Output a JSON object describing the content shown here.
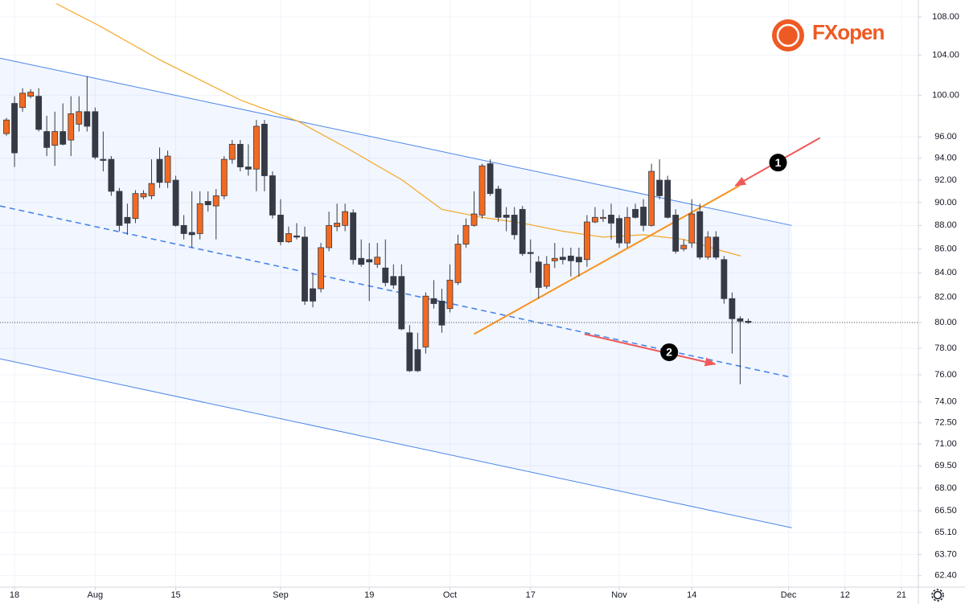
{
  "chart_data": {
    "type": "candlestick",
    "logo": "FXopen",
    "log_scale": true,
    "grid": true,
    "up_color": "#f26a21",
    "down_color": "#363a45",
    "xlim": [
      -1.8,
      112.1
    ],
    "xticks": [
      {
        "value": 0,
        "label": "18"
      },
      {
        "value": 10,
        "label": "Aug"
      },
      {
        "value": 20,
        "label": "15"
      },
      {
        "value": 33,
        "label": "Sep"
      },
      {
        "value": 44,
        "label": "19"
      },
      {
        "value": 54,
        "label": "Oct"
      },
      {
        "value": 64,
        "label": "17"
      },
      {
        "value": 75,
        "label": "Nov"
      },
      {
        "value": 84,
        "label": "14"
      },
      {
        "value": 96,
        "label": "Dec"
      },
      {
        "value": 103,
        "label": "12"
      },
      {
        "value": 110,
        "label": "21"
      }
    ],
    "ylim": [
      61.7,
      109.8
    ],
    "yticks": [
      {
        "value": 108,
        "label": "108.00"
      },
      {
        "value": 104,
        "label": "104.00"
      },
      {
        "value": 100,
        "label": "100.00"
      },
      {
        "value": 96,
        "label": "96.00"
      },
      {
        "value": 94,
        "label": "94.00"
      },
      {
        "value": 92,
        "label": "92.00"
      },
      {
        "value": 90,
        "label": "90.00"
      },
      {
        "value": 88,
        "label": "88.00"
      },
      {
        "value": 86,
        "label": "86.00"
      },
      {
        "value": 84,
        "label": "84.00"
      },
      {
        "value": 82,
        "label": "82.00"
      },
      {
        "value": 80,
        "label": "80.00"
      },
      {
        "value": 78,
        "label": "78.00"
      },
      {
        "value": 76,
        "label": "76.00"
      },
      {
        "value": 74,
        "label": "74.00"
      },
      {
        "value": 72.5,
        "label": "72.50"
      },
      {
        "value": 71,
        "label": "71.00"
      },
      {
        "value": 69.5,
        "label": "69.50"
      },
      {
        "value": 68,
        "label": "68.00"
      },
      {
        "value": 66.5,
        "label": "66.50"
      },
      {
        "value": 65.1,
        "label": "65.10"
      },
      {
        "value": 63.7,
        "label": "63.70"
      },
      {
        "value": 62.4,
        "label": "62.40"
      }
    ],
    "candles": {
      "x": [
        -1,
        0,
        1,
        2,
        3,
        4,
        5,
        6,
        7,
        8,
        9,
        10,
        11,
        12,
        13,
        14,
        15,
        16,
        17,
        18,
        19,
        20,
        21,
        22,
        23,
        24,
        25,
        26,
        27,
        28,
        29,
        30,
        31,
        32,
        33,
        34,
        35,
        36,
        37,
        38,
        39,
        40,
        41,
        42,
        43,
        44,
        45,
        46,
        47,
        48,
        49,
        50,
        51,
        52,
        53,
        54,
        55,
        56,
        57,
        58,
        59,
        60,
        61,
        62,
        63,
        64,
        65,
        66,
        67,
        68,
        69,
        70,
        71,
        72,
        73,
        74,
        75,
        76,
        77,
        78,
        79,
        80,
        81,
        82,
        83,
        84,
        85,
        86,
        87,
        88,
        89,
        90,
        91
      ],
      "open": [
        96.3,
        99.2,
        98.8,
        99.9,
        99.9,
        96.5,
        95.2,
        96.5,
        95.7,
        97.2,
        98.4,
        98.4,
        93.9,
        93.9,
        91.0,
        88.7,
        88.6,
        90.5,
        90.6,
        93.9,
        91.8,
        92.0,
        88.0,
        87.4,
        87.3,
        90.1,
        89.7,
        90.6,
        93.9,
        95.3,
        93.2,
        93.0,
        97.2,
        92.4,
        88.9,
        86.6,
        87.1,
        87.0,
        82.7,
        82.7,
        86.1,
        87.9,
        88.0,
        89.1,
        85.2,
        85.1,
        84.7,
        84.4,
        83.7,
        83.7,
        79.2,
        77.9,
        78.1,
        81.9,
        81.7,
        81.1,
        83.2,
        86.4,
        88.0,
        88.9,
        93.5,
        91.2,
        88.9,
        88.9,
        89.4,
        85.7,
        84.9,
        82.9,
        85.0,
        85.3,
        85.4,
        85.3,
        85.1,
        88.3,
        88.6,
        88.9,
        88.6,
        86.5,
        89.4,
        89.6,
        88.0,
        92.0,
        92.0,
        88.9,
        86.0,
        86.5,
        89.2,
        85.3,
        87.0,
        85.1,
        81.9,
        80.3,
        80.1
      ],
      "high": [
        97.8,
        99.9,
        100.7,
        100.6,
        100.7,
        98.0,
        98.4,
        99.2,
        99.9,
        99.9,
        101.9,
        98.8,
        96.5,
        94.2,
        91.3,
        89.9,
        91.1,
        91.1,
        93.9,
        95.0,
        94.7,
        92.4,
        88.9,
        91.0,
        91.0,
        91.0,
        91.2,
        94.2,
        95.7,
        95.7,
        95.3,
        97.6,
        97.6,
        92.8,
        90.3,
        87.9,
        88.2,
        87.9,
        84.0,
        86.5,
        89.2,
        89.9,
        89.9,
        89.4,
        86.8,
        86.5,
        86.5,
        86.8,
        84.7,
        84.7,
        79.8,
        79.2,
        82.4,
        83.4,
        82.7,
        84.7,
        87.2,
        88.6,
        91.0,
        93.5,
        93.9,
        91.5,
        89.6,
        89.6,
        89.7,
        86.8,
        85.4,
        85.4,
        86.5,
        86.1,
        86.1,
        86.1,
        88.9,
        89.6,
        89.4,
        89.9,
        88.9,
        89.6,
        89.9,
        90.3,
        93.5,
        93.9,
        92.4,
        89.4,
        86.8,
        90.3,
        89.9,
        87.5,
        87.5,
        85.4,
        82.4,
        80.5,
        80.3
      ],
      "low": [
        96.1,
        93.2,
        98.4,
        99.7,
        96.5,
        94.2,
        93.3,
        95.2,
        94.2,
        96.5,
        96.5,
        93.9,
        92.8,
        90.6,
        87.5,
        87.2,
        88.2,
        90.3,
        90.3,
        91.3,
        91.3,
        87.9,
        86.8,
        86.1,
        86.8,
        89.2,
        86.8,
        90.3,
        93.5,
        92.8,
        92.4,
        91.0,
        91.0,
        88.6,
        86.3,
        86.5,
        86.8,
        81.4,
        81.2,
        82.4,
        85.8,
        87.5,
        87.5,
        84.7,
        84.5,
        81.7,
        84.4,
        82.9,
        82.7,
        79.4,
        76.2,
        76.2,
        77.6,
        81.1,
        79.2,
        80.8,
        83.0,
        86.1,
        87.9,
        88.6,
        90.6,
        88.3,
        87.5,
        86.8,
        85.4,
        84.0,
        81.9,
        82.7,
        84.4,
        84.7,
        83.7,
        83.7,
        84.5,
        88.2,
        88.3,
        86.8,
        86.1,
        86.1,
        88.6,
        87.5,
        87.9,
        90.3,
        88.6,
        85.6,
        85.8,
        86.1,
        85.1,
        85.1,
        85.1,
        81.5,
        77.6,
        75.3,
        79.9
      ],
      "close": [
        97.6,
        94.5,
        100.2,
        100.3,
        96.7,
        95.0,
        96.5,
        95.3,
        98.2,
        98.4,
        97.0,
        94.1,
        93.8,
        91.0,
        88.0,
        88.2,
        90.8,
        90.8,
        91.7,
        91.8,
        94.2,
        88.0,
        87.3,
        87.2,
        89.9,
        89.8,
        90.6,
        93.9,
        95.3,
        93.2,
        93.0,
        97.0,
        92.4,
        88.9,
        86.6,
        87.3,
        87.0,
        81.7,
        81.7,
        86.1,
        88.0,
        88.2,
        89.2,
        85.1,
        84.7,
        84.9,
        85.3,
        83.2,
        83.0,
        79.5,
        76.3,
        76.3,
        82.1,
        81.5,
        79.8,
        83.4,
        86.4,
        88.0,
        89.0,
        93.3,
        90.8,
        88.7,
        88.7,
        87.2,
        85.6,
        85.6,
        82.8,
        84.7,
        85.2,
        85.1,
        85.0,
        84.9,
        88.3,
        88.7,
        88.7,
        88.2,
        86.5,
        88.7,
        88.7,
        88.0,
        92.8,
        90.6,
        88.7,
        85.8,
        86.3,
        89.0,
        85.3,
        87.0,
        85.3,
        81.9,
        80.3,
        80.1,
        80.0
      ]
    },
    "moving_average": {
      "color": "#f5a623",
      "x": [
        5.2,
        10.2,
        18.1,
        28.1,
        35.1,
        41.1,
        48.1,
        53.0,
        58.0,
        63.0,
        68.0,
        73.0,
        78.0,
        83.0,
        87.9,
        90.1
      ],
      "values": [
        109.4,
        107.2,
        103.5,
        99.5,
        97.5,
        95.0,
        92.0,
        89.4,
        88.7,
        88.2,
        87.5,
        87.0,
        87.2,
        86.8,
        85.8,
        85.4
      ]
    },
    "channel": {
      "color": "#4a86e8",
      "fill": "rgba(66,133,244,0.07)",
      "x": [
        -1.8,
        96.4
      ],
      "upper": [
        103.7,
        88.0
      ],
      "middle": [
        89.7,
        75.8
      ],
      "lower": [
        77.2,
        65.4
      ]
    },
    "trendline": {
      "color": "#f7931e",
      "x": [
        57.0,
        89.9
      ],
      "values": [
        79.1,
        91.5
      ]
    },
    "last_price": 80.0,
    "annotations": [
      {
        "label": "1",
        "x": 94.7,
        "y": 93.6,
        "arrow_x": [
          99.9,
          89.4
        ],
        "arrow_y": [
          95.9,
          91.5
        ]
      },
      {
        "label": "2",
        "x": 81.2,
        "y": 77.7,
        "arrow_x": [
          70.7,
          86.9
        ],
        "arrow_y": [
          79.1,
          76.8
        ]
      }
    ]
  }
}
